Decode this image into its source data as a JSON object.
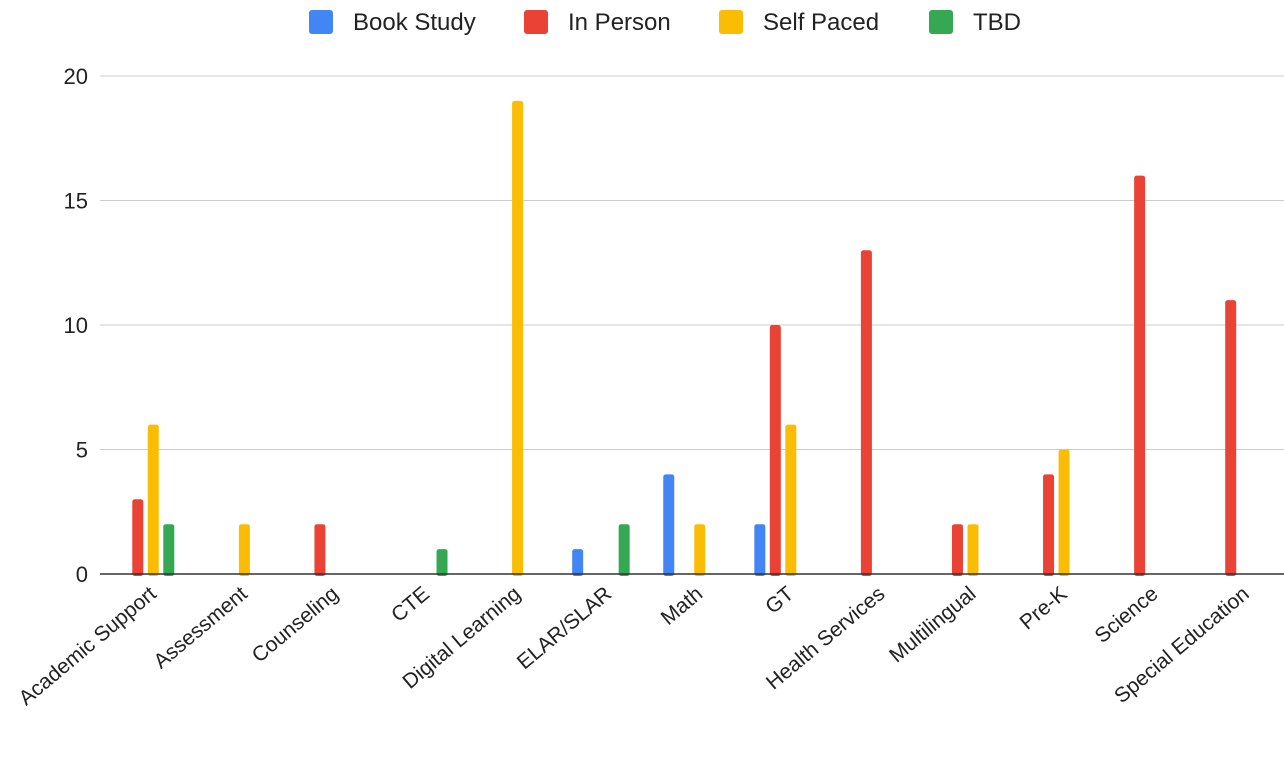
{
  "chart_data": {
    "type": "bar",
    "title": "",
    "xlabel": "",
    "ylabel": "",
    "ylim": [
      0,
      20
    ],
    "yticks": [
      0,
      5,
      10,
      15,
      20
    ],
    "grid": true,
    "legend_position": "top",
    "categories": [
      "Academic Support",
      "Assessment",
      "Counseling",
      "CTE",
      "Digital Learning",
      "ELAR/SLAR",
      "Math",
      "GT",
      "Health Services",
      "Multilingual",
      "Pre-K",
      "Science",
      "Special Education"
    ],
    "series": [
      {
        "name": "Book Study",
        "color": "#4285F4",
        "values": [
          0,
          0,
          0,
          0,
          0,
          1,
          4,
          2,
          0,
          0,
          0,
          0,
          0
        ]
      },
      {
        "name": "In Person",
        "color": "#EA4335",
        "values": [
          3,
          0,
          2,
          0,
          0,
          0,
          0,
          10,
          13,
          2,
          4,
          16,
          11
        ]
      },
      {
        "name": "Self Paced",
        "color": "#FBBC04",
        "values": [
          6,
          2,
          0,
          0,
          19,
          0,
          2,
          6,
          0,
          2,
          5,
          0,
          0
        ]
      },
      {
        "name": "TBD",
        "color": "#34A853",
        "values": [
          2,
          0,
          0,
          1,
          0,
          2,
          0,
          0,
          0,
          0,
          0,
          0,
          0
        ]
      }
    ]
  }
}
